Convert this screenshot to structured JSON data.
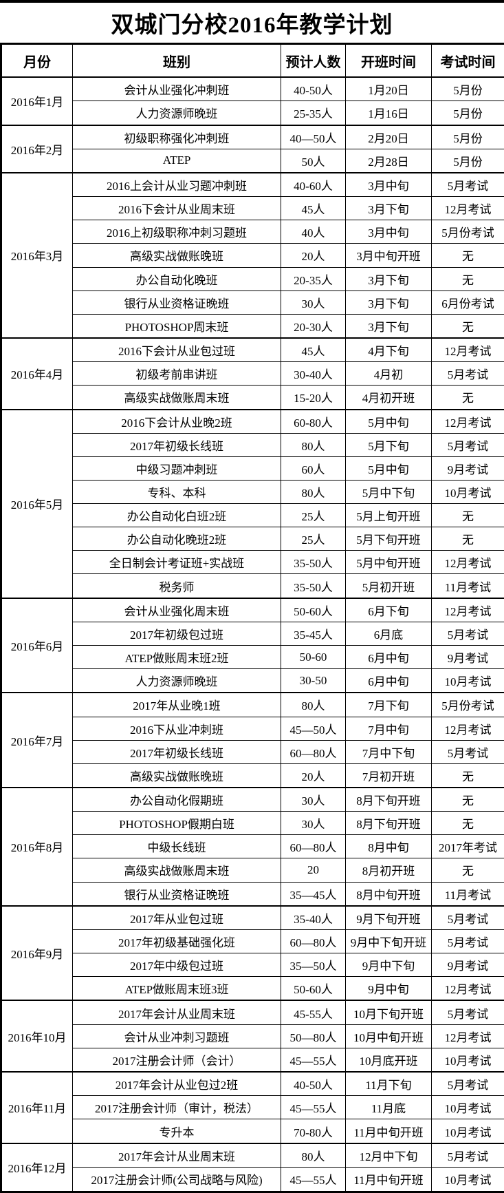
{
  "page": {
    "title": "双城门分校2016年教学计划"
  },
  "table": {
    "headers": [
      "月份",
      "班别",
      "预计人数",
      "开班时间",
      "考试时间"
    ],
    "months": [
      {
        "month": "2016年1月",
        "rows": [
          {
            "class_name": "会计从业强化冲刺班",
            "size": "40-50人",
            "start": "1月20日",
            "exam": "5月份"
          },
          {
            "class_name": "人力资源师晚班",
            "size": "25-35人",
            "start": "1月16日",
            "exam": "5月份"
          }
        ]
      },
      {
        "month": "2016年2月",
        "rows": [
          {
            "class_name": "初级职称强化冲刺班",
            "size": "40—50人",
            "start": "2月20日",
            "exam": "5月份"
          },
          {
            "class_name": "ATEP",
            "size": "50人",
            "start": "2月28日",
            "exam": "5月份"
          }
        ]
      },
      {
        "month": "2016年3月",
        "rows": [
          {
            "class_name": "2016上会计从业习题冲刺班",
            "size": "40-60人",
            "start": "3月中旬",
            "exam": "5月考试"
          },
          {
            "class_name": "2016下会计从业周末班",
            "size": "45人",
            "start": "3月下旬",
            "exam": "12月考试"
          },
          {
            "class_name": "2016上初级职称冲刺习题班",
            "size": "40人",
            "start": "3月中旬",
            "exam": "5月份考试"
          },
          {
            "class_name": "高级实战做账晚班",
            "size": "20人",
            "start": "3月中旬开班",
            "exam": "无"
          },
          {
            "class_name": "办公自动化晚班",
            "size": "20-35人",
            "start": "3月下旬",
            "exam": "无"
          },
          {
            "class_name": "银行从业资格证晚班",
            "size": "30人",
            "start": "3月下旬",
            "exam": "6月份考试"
          },
          {
            "class_name": "PHOTOSHOP周末班",
            "size": "20-30人",
            "start": "3月下旬",
            "exam": "无"
          }
        ]
      },
      {
        "month": "2016年4月",
        "rows": [
          {
            "class_name": "2016下会计从业包过班",
            "size": "45人",
            "start": "4月下旬",
            "exam": "12月考试"
          },
          {
            "class_name": "初级考前串讲班",
            "size": "30-40人",
            "start": "4月初",
            "exam": "5月考试"
          },
          {
            "class_name": "高级实战做账周末班",
            "size": "15-20人",
            "start": "4月初开班",
            "exam": "无"
          }
        ]
      },
      {
        "month": "2016年5月",
        "rows": [
          {
            "class_name": "2016下会计从业晚2班",
            "size": "60-80人",
            "start": "5月中旬",
            "exam": "12月考试"
          },
          {
            "class_name": "2017年初级长线班",
            "size": "80人",
            "start": "5月下旬",
            "exam": "5月考试"
          },
          {
            "class_name": "中级习题冲刺班",
            "size": "60人",
            "start": "5月中旬",
            "exam": "9月考试"
          },
          {
            "class_name": "专科、本科",
            "size": "80人",
            "start": "5月中下旬",
            "exam": "10月考试"
          },
          {
            "class_name": "办公自动化白班2班",
            "size": "25人",
            "start": "5月上旬开班",
            "exam": "无"
          },
          {
            "class_name": "办公自动化晚班2班",
            "size": "25人",
            "start": "5月下旬开班",
            "exam": "无"
          },
          {
            "class_name": "全日制会计考证班+实战班",
            "size": "35-50人",
            "start": "5月中旬开班",
            "exam": "12月考试"
          },
          {
            "class_name": "税务师",
            "size": "35-50人",
            "start": "5月初开班",
            "exam": "11月考试"
          }
        ]
      },
      {
        "month": "2016年6月",
        "rows": [
          {
            "class_name": "会计从业强化周末班",
            "size": "50-60人",
            "start": "6月下旬",
            "exam": "12月考试"
          },
          {
            "class_name": "2017年初级包过班",
            "size": "35-45人",
            "start": "6月底",
            "exam": "5月考试"
          },
          {
            "class_name": "ATEP做账周末班2班",
            "size": "50-60",
            "start": "6月中旬",
            "exam": "9月考试"
          },
          {
            "class_name": "人力资源师晚班",
            "size": "30-50",
            "start": "6月中旬",
            "exam": "10月考试"
          }
        ]
      },
      {
        "month": "2016年7月",
        "rows": [
          {
            "class_name": "2017年从业晚1班",
            "size": "80人",
            "start": "7月下旬",
            "exam": "5月份考试"
          },
          {
            "class_name": "2016下从业冲刺班",
            "size": "45—50人",
            "start": "7月中旬",
            "exam": "12月考试"
          },
          {
            "class_name": "2017年初级长线班",
            "size": "60—80人",
            "start": "7月中下旬",
            "exam": "5月考试"
          },
          {
            "class_name": "高级实战做账晚班",
            "size": "20人",
            "start": "7月初开班",
            "exam": "无"
          }
        ]
      },
      {
        "month": "2016年8月",
        "rows": [
          {
            "class_name": "办公自动化假期班",
            "size": "30人",
            "start": "8月下旬开班",
            "exam": "无"
          },
          {
            "class_name": "PHOTOSHOP假期白班",
            "size": "30人",
            "start": "8月下旬开班",
            "exam": "无"
          },
          {
            "class_name": "中级长线班",
            "size": "60—80人",
            "start": "8月中旬",
            "exam": "2017年考试"
          },
          {
            "class_name": "高级实战做账周末班",
            "size": "20",
            "start": "8月初开班",
            "exam": "无"
          },
          {
            "class_name": "银行从业资格证晚班",
            "size": "35—45人",
            "start": "8月中旬开班",
            "exam": "11月考试"
          }
        ]
      },
      {
        "month": "2016年9月",
        "rows": [
          {
            "class_name": "2017年从业包过班",
            "size": "35-40人",
            "start": "9月下旬开班",
            "exam": "5月考试"
          },
          {
            "class_name": "2017年初级基础强化班",
            "size": "60—80人",
            "start": "9月中下旬开班",
            "exam": "5月考试"
          },
          {
            "class_name": "2017年中级包过班",
            "size": "35—50人",
            "start": "9月中下旬",
            "exam": "9月考试"
          },
          {
            "class_name": "ATEP做账周末班3班",
            "size": "50-60人",
            "start": "9月中旬",
            "exam": "12月考试"
          }
        ]
      },
      {
        "month": "2016年10月",
        "rows": [
          {
            "class_name": "2017年会计从业周末班",
            "size": "45-55人",
            "start": "10月下旬开班",
            "exam": "5月考试"
          },
          {
            "class_name": "会计从业冲刺习题班",
            "size": "50—80人",
            "start": "10月中旬开班",
            "exam": "12月考试"
          },
          {
            "class_name": "2017注册会计师（会计）",
            "size": "45—55人",
            "start": "10月底开班",
            "exam": "10月考试"
          }
        ]
      },
      {
        "month": "2016年11月",
        "rows": [
          {
            "class_name": "2017年会计从业包过2班",
            "size": "40-50人",
            "start": "11月下旬",
            "exam": "5月考试"
          },
          {
            "class_name": "2017注册会计师（审计，税法）",
            "size": "45—55人",
            "start": "11月底",
            "exam": "10月考试"
          },
          {
            "class_name": "专升本",
            "size": "70-80人",
            "start": "11月中旬开班",
            "exam": "10月考试"
          }
        ]
      },
      {
        "month": "2016年12月",
        "rows": [
          {
            "class_name": "2017年会计从业周末班",
            "size": "80人",
            "start": "12月中下旬",
            "exam": "5月考试"
          },
          {
            "class_name": "2017注册会计师(公司战略与风险)",
            "size": "45—55人",
            "start": "11月中旬开班",
            "exam": "10月考试"
          }
        ]
      }
    ]
  }
}
